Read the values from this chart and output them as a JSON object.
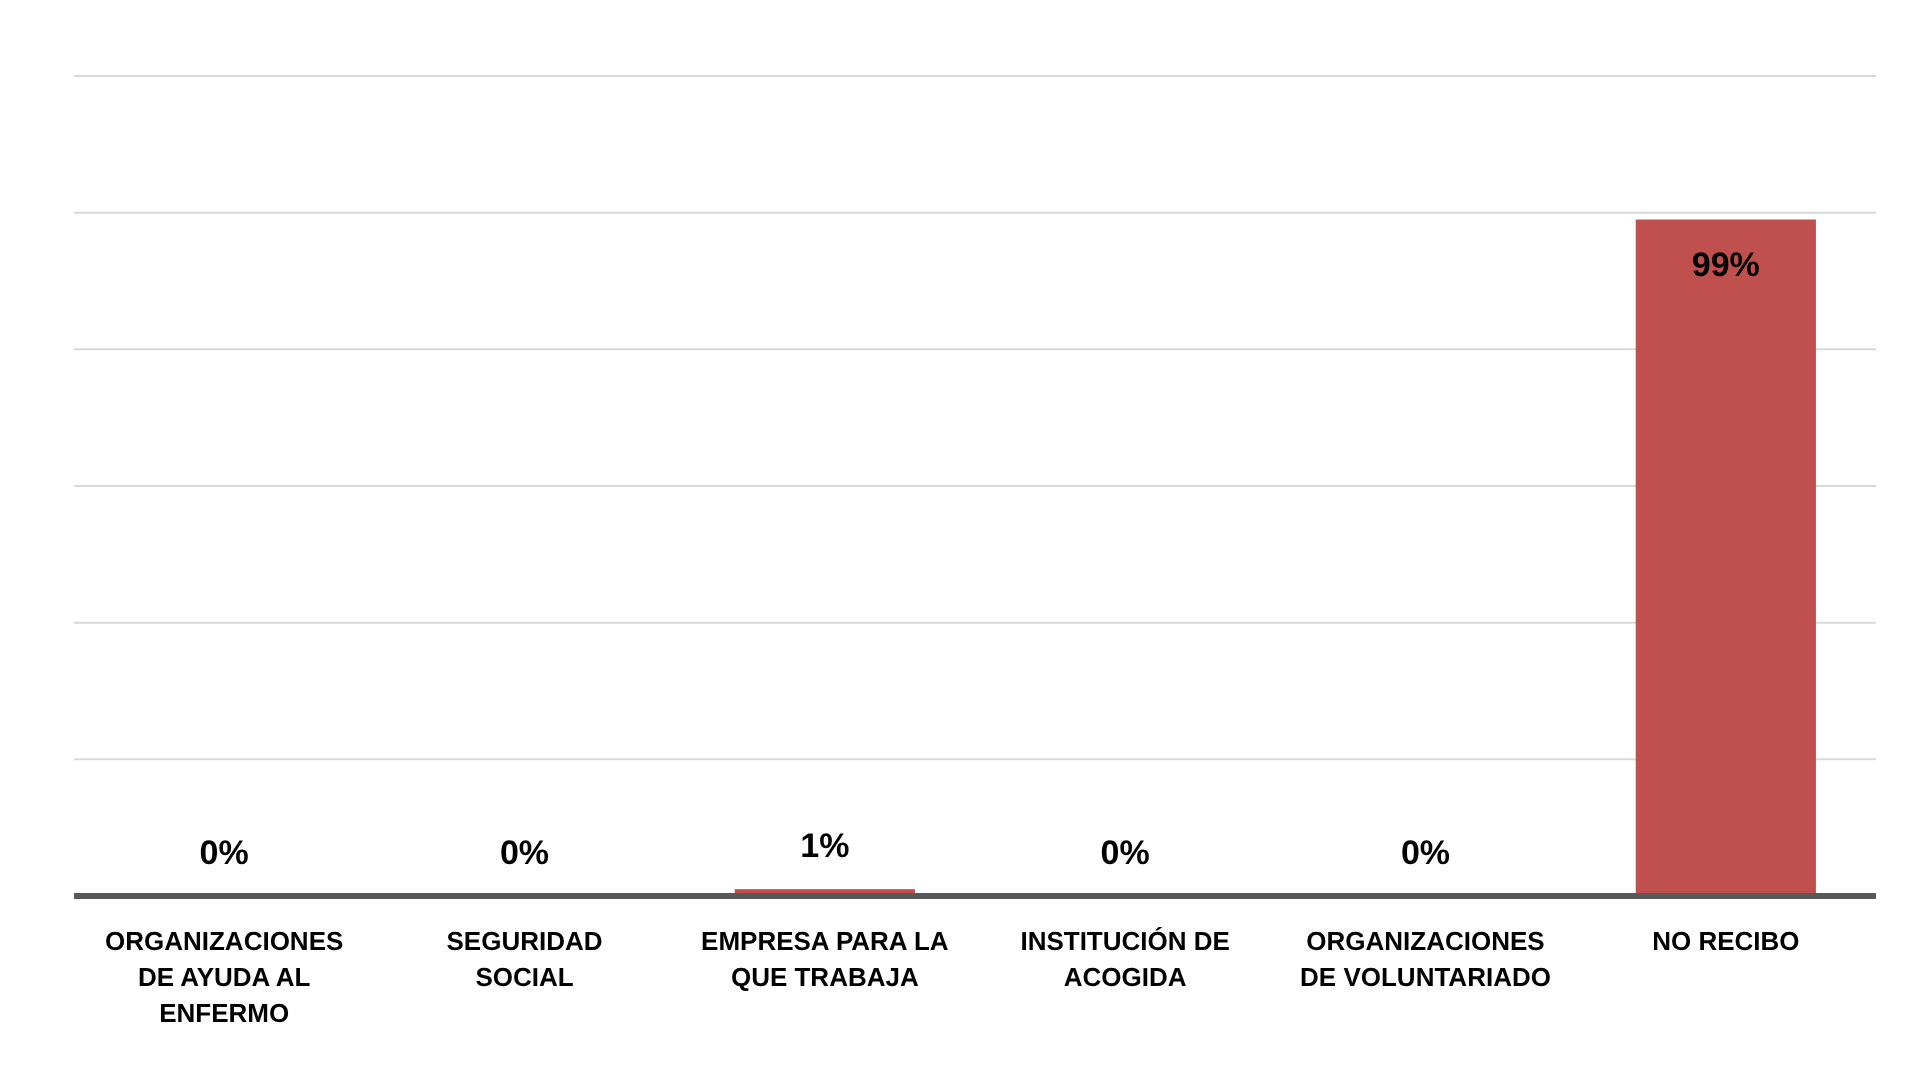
{
  "chart_data": {
    "type": "bar",
    "categories": [
      "ORGANIZACIONES DE AYUDA AL ENFERMO",
      "SEGURIDAD SOCIAL",
      "EMPRESA PARA LA QUE TRABAJA",
      "INSTITUCIÓN DE ACOGIDA",
      "ORGANIZACIONES DE VOLUNTARIADO",
      "NO RECIBO"
    ],
    "values": [
      0,
      0,
      1,
      0,
      0,
      99
    ],
    "value_labels": [
      "0%",
      "0%",
      "1%",
      "0%",
      "0%",
      "99%"
    ],
    "color": "#c0504d",
    "ylim": [
      0,
      120
    ],
    "yticks": [
      {
        "value": 0,
        "label": null
      },
      {
        "value": 20,
        "label": null
      },
      {
        "value": 40,
        "label": null
      },
      {
        "value": 60,
        "label": null
      },
      {
        "value": 80,
        "label": null
      },
      {
        "value": 100,
        "label": null
      },
      {
        "value": 120,
        "label": null
      }
    ],
    "grid": "y",
    "tick_labels": "x"
  }
}
